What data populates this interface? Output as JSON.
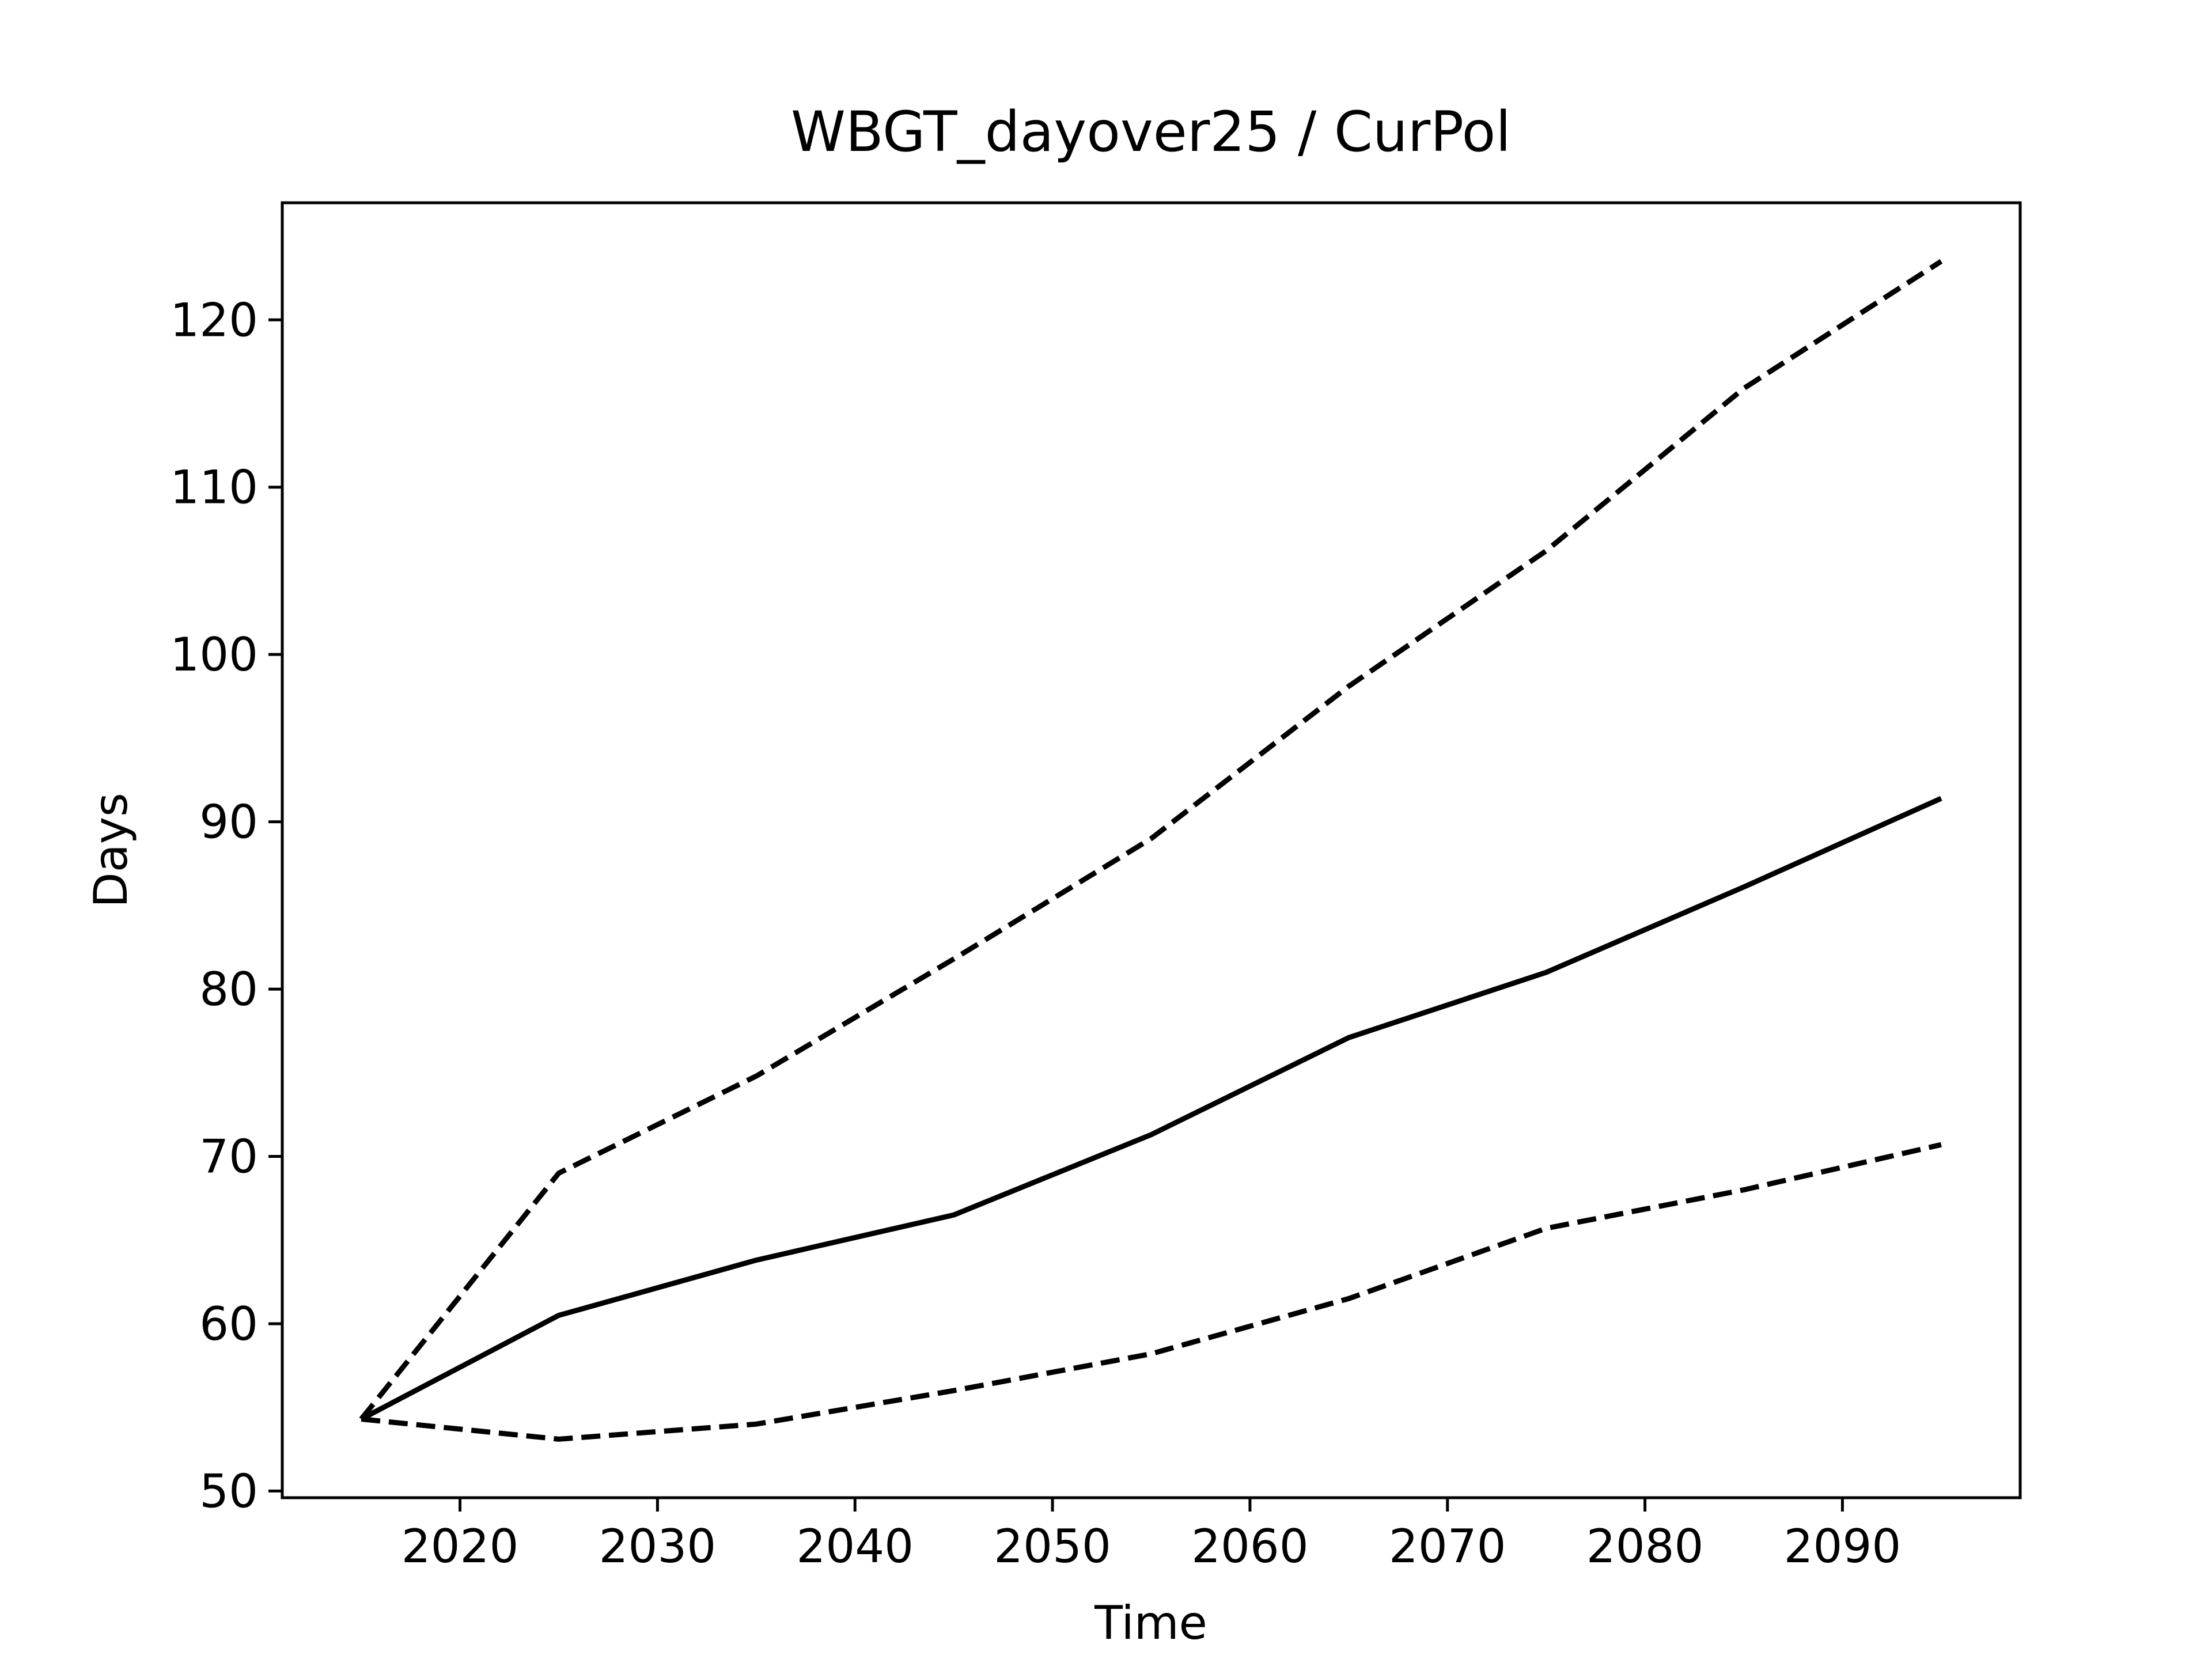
{
  "chart_data": {
    "type": "line",
    "title": "WBGT_dayover25 / CurPol",
    "xlabel": "Time",
    "ylabel": "Days",
    "xlim": [
      2011,
      2099
    ],
    "ylim": [
      49.6,
      127.0
    ],
    "xticks": [
      2020,
      2030,
      2040,
      2050,
      2060,
      2070,
      2080,
      2090
    ],
    "yticks": [
      50,
      60,
      70,
      80,
      90,
      100,
      110,
      120
    ],
    "grid": false,
    "legend": "none",
    "colors": {
      "line": "#000000",
      "axes": "#000000",
      "background": "#ffffff"
    },
    "x": [
      2015,
      2025,
      2035,
      2045,
      2055,
      2065,
      2075,
      2085,
      2095
    ],
    "series": [
      {
        "style": "dashed",
        "values": [
          54.3,
          69.0,
          74.8,
          81.8,
          89.0,
          98.1,
          106.2,
          115.9,
          123.5
        ]
      },
      {
        "style": "solid",
        "values": [
          54.3,
          60.5,
          63.8,
          66.5,
          71.3,
          77.1,
          81.0,
          86.1,
          91.4
        ]
      },
      {
        "style": "dashed",
        "values": [
          54.3,
          53.1,
          54.0,
          56.0,
          58.2,
          61.5,
          65.7,
          68.0,
          70.7
        ]
      }
    ]
  }
}
